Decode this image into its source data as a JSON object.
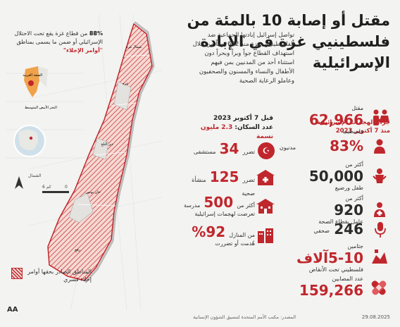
{
  "title": "مقتل أو إصابة 10 بالمئة من فلسطينيي غزة في الإبادة الإسرائيلية",
  "intro": "تواصل إسرائيل إبادتها الجماعية ضد الفلسطينيين بغزة منذ 692 يوماً من خلال استهداف القطاع جواً وبراً وبحراً دون استثناء أحد من المدنيين بمن فيهم الأطفال والنساء والمسنون والصحفيون وعاملو الرعاية الصحية",
  "note88": {
    "pct": "88%",
    "text": "من قطاع غزة يقع تحت الاحتلال الإسرائيلي أو ضمن ما يسمى بمناطق",
    "quote": "\"أوامر الإخلاء\""
  },
  "right_header": "جراء الهجمات الإسرائيلية منذ 7 أكتوبر 2023",
  "mid_header": {
    "line1": "قبل 7 أكتوبر 2023",
    "line2": "عدد السكان:",
    "pop": "2.3 مليون نسمة"
  },
  "right_stats": [
    {
      "value": "62,966",
      "label_top": "مقتل",
      "label": "فلسطينيا",
      "icon": "family-icon"
    },
    {
      "value": "83%",
      "label": "مدنيون",
      "icon": "person-icon"
    },
    {
      "value": "50,000",
      "label_top": "أكثر من",
      "label": "طفل ورضيع",
      "icon": "child-icon"
    },
    {
      "value": "920",
      "label_top": "أكثر من",
      "label": "عامل بقطاع الصحة",
      "icon": "medic-icon"
    },
    {
      "value": "246",
      "label": "صحفي",
      "icon": "microphone-icon"
    },
    {
      "value": "5-10آلاف",
      "label_top": "جثامين",
      "label": "فلسطيني تحت الأنقاض",
      "icon": "rubble-icon"
    },
    {
      "value": "159,266",
      "label_top": "عدد المصابين",
      "label": "",
      "icon": "bandage-icon"
    }
  ],
  "mid_stats": [
    {
      "value": "34",
      "prefix": "تضرر",
      "label": "مستشفى",
      "icon": "crescent-icon"
    },
    {
      "value": "125",
      "prefix": "تضرر",
      "label": "منشأة صحية",
      "icon": "clinic-icon"
    },
    {
      "value": "500",
      "prefix": "أكثر من",
      "label": "مدرسة",
      "label2": "تعرضت لهجمات إسرائيلية",
      "icon": "school-icon"
    },
    {
      "value": "92%",
      "prefix": "من المنازل",
      "label": "هُدمت أو تضررت",
      "icon": "buildings-icon"
    }
  ],
  "map": {
    "labels": [
      "شمال غزة",
      "غزة",
      "دير البلح",
      "خان يونس",
      "رفح"
    ],
    "inset_labels": [
      "الضفة الغربية",
      "البحر الأبيض المتوسط"
    ],
    "north": "الشمال",
    "scale": "6 كم",
    "scale_zero": "0"
  },
  "legend": "المناطق الصادر بحقها أوامر إخلاء قسري",
  "footer": "المصدر: مكتب الأمم المتحدة لتنسيق الشؤون الإنسانية",
  "date": "29.08.2025",
  "logo": "AA",
  "colors": {
    "accent": "#c0272d",
    "bg": "#f3f3f1"
  }
}
